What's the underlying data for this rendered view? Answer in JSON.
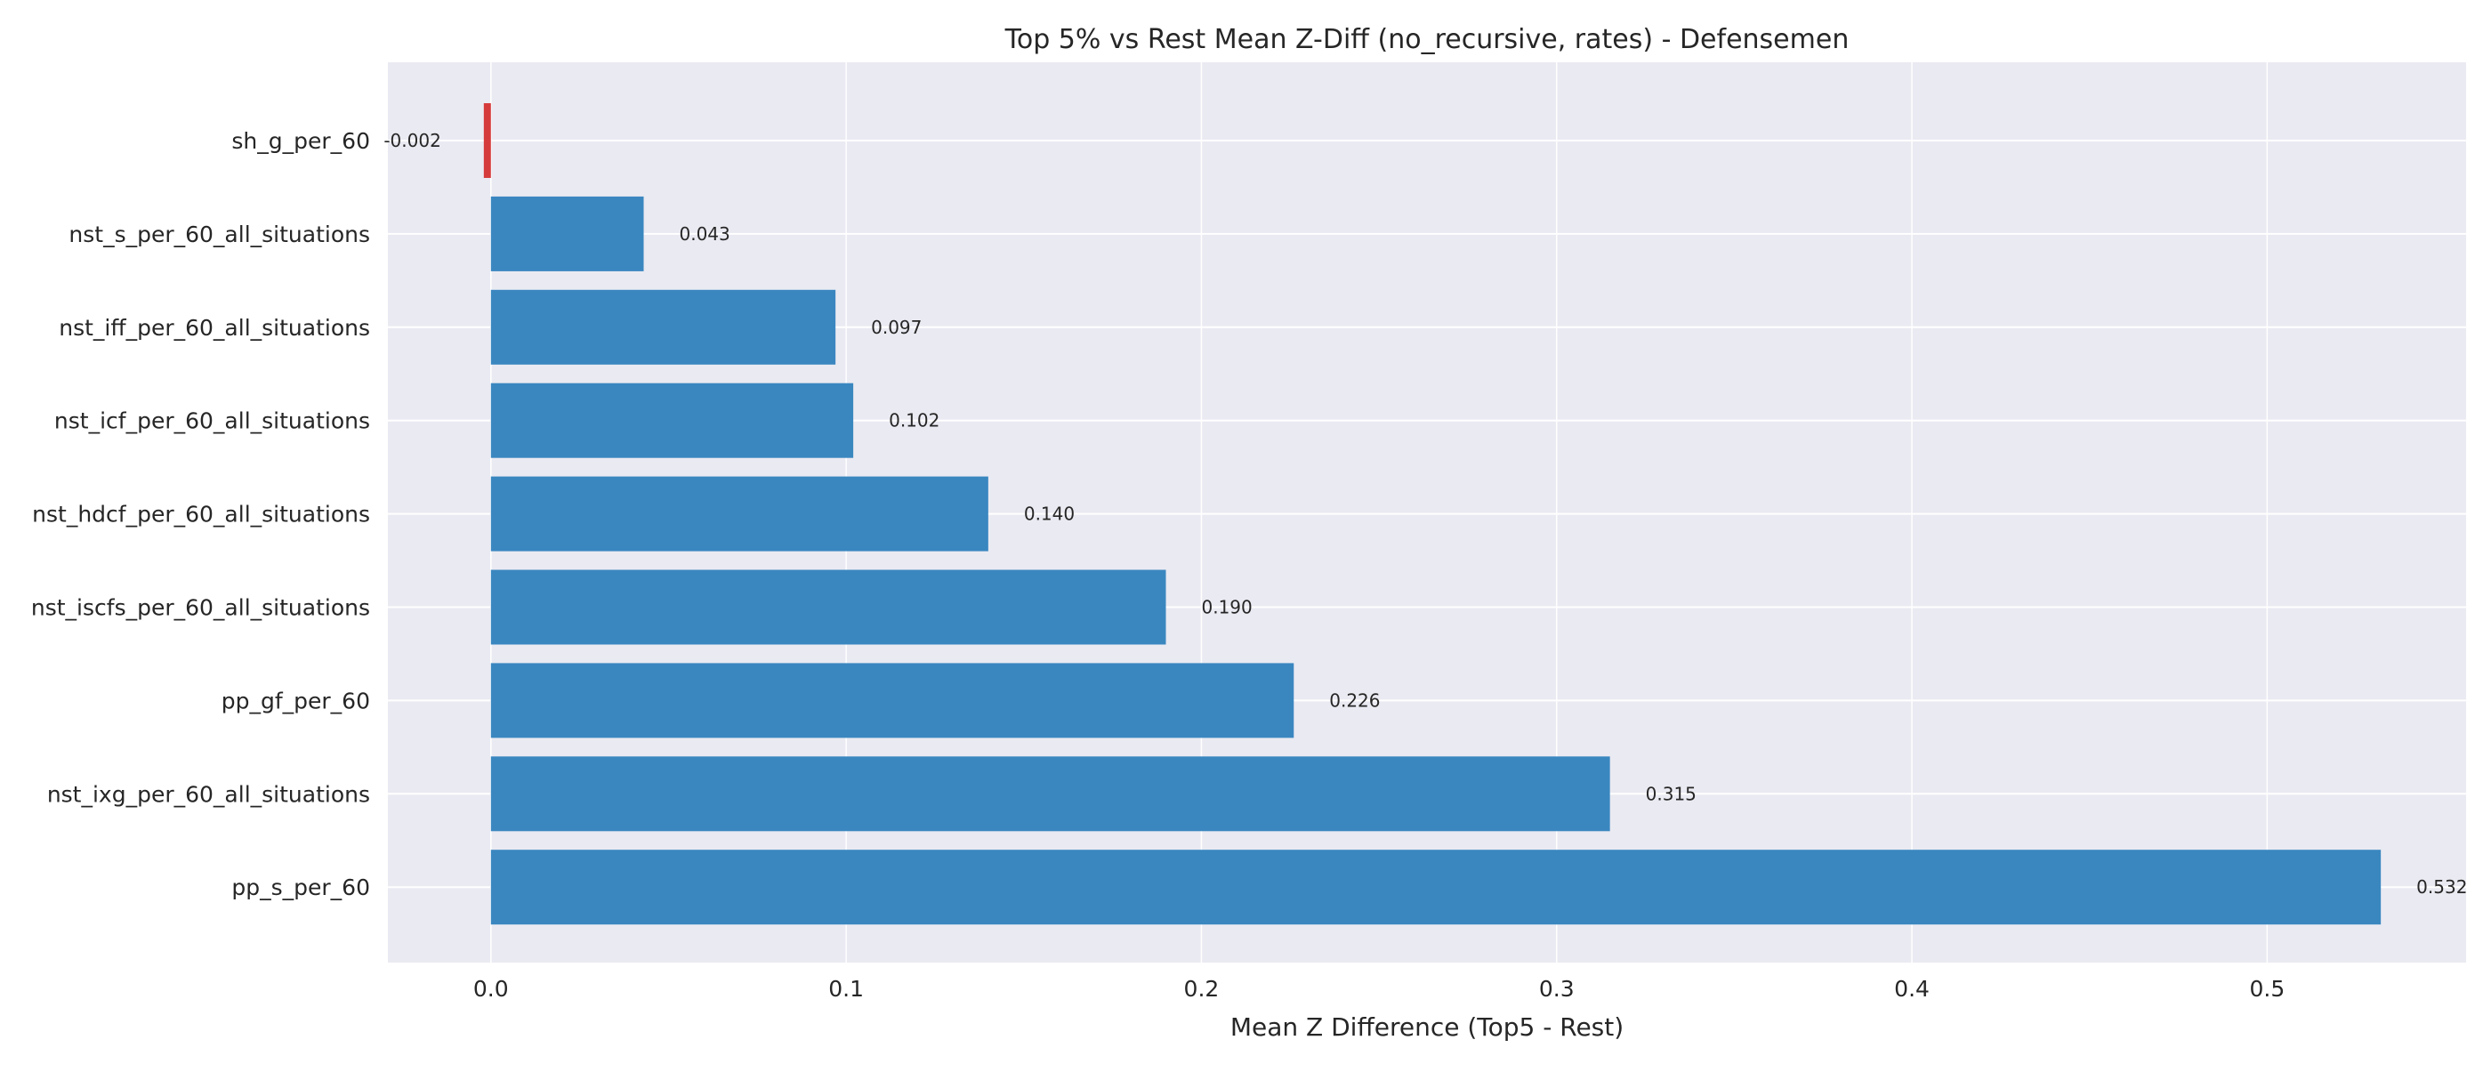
{
  "chart_data": {
    "type": "bar",
    "orientation": "horizontal",
    "title": "Top 5% vs Rest Mean Z-Diff (no_recursive, rates) - Defensemen",
    "xlabel": "Mean Z Difference (Top5 - Rest)",
    "ylabel": "",
    "xlim": [
      -0.029,
      0.556
    ],
    "xticks": [
      0.0,
      0.1,
      0.2,
      0.3,
      0.4,
      0.5
    ],
    "xtick_labels": [
      "0.0",
      "0.1",
      "0.2",
      "0.3",
      "0.4",
      "0.5"
    ],
    "grid": true,
    "categories": [
      "sh_g_per_60",
      "nst_s_per_60_all_situations",
      "nst_iff_per_60_all_situations",
      "nst_icf_per_60_all_situations",
      "nst_hdcf_per_60_all_situations",
      "nst_iscfs_per_60_all_situations",
      "pp_gf_per_60",
      "nst_ixg_per_60_all_situations",
      "pp_s_per_60"
    ],
    "values": [
      -0.002,
      0.043,
      0.097,
      0.102,
      0.14,
      0.19,
      0.226,
      0.315,
      0.532
    ],
    "value_labels": [
      "-0.002",
      "0.043",
      "0.097",
      "0.102",
      "0.140",
      "0.190",
      "0.226",
      "0.315",
      "0.532"
    ],
    "colors": {
      "positive": "#3a87c0",
      "negative": "#d63b3b",
      "plot_background": "#eaeaf2",
      "grid": "#ffffff"
    }
  }
}
